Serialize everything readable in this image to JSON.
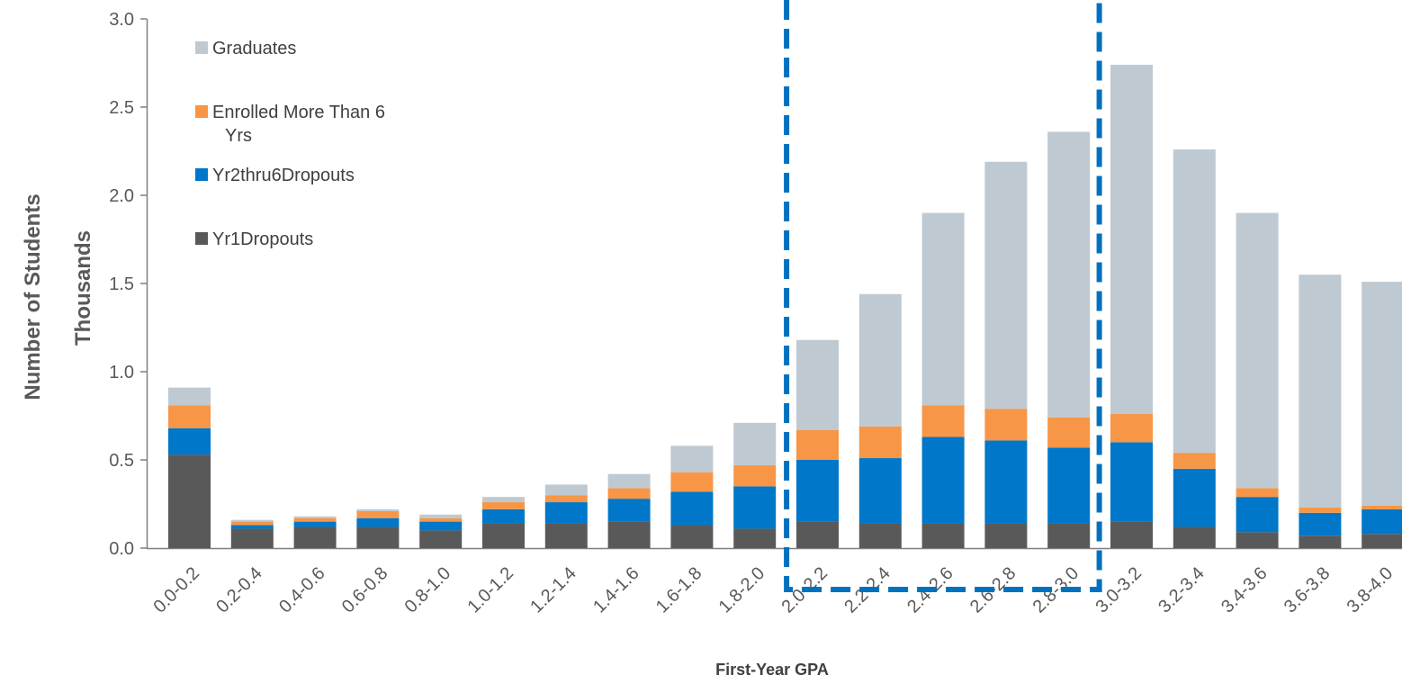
{
  "chart_data": {
    "type": "bar",
    "stacked": true,
    "categories": [
      "0.0-0.2",
      "0.2-0.4",
      "0.4-0.6",
      "0.6-0.8",
      "0.8-1.0",
      "1.0-1.2",
      "1.2-1.4",
      "1.4-1.6",
      "1.6-1.8",
      "1.8-2.0",
      "2.0-2.2",
      "2.2-2.4",
      "2.4-2.6",
      "2.6-2.8",
      "2.8-3.0",
      "3.0-3.2",
      "3.2-3.4",
      "3.4-3.6",
      "3.6-3.8",
      "3.8-4.0"
    ],
    "series": [
      {
        "name": "Yr1Dropouts",
        "color": "#595959",
        "values": [
          0.53,
          0.11,
          0.12,
          0.12,
          0.1,
          0.14,
          0.14,
          0.15,
          0.13,
          0.11,
          0.15,
          0.14,
          0.14,
          0.14,
          0.14,
          0.15,
          0.12,
          0.09,
          0.07,
          0.08
        ]
      },
      {
        "name": "Yr2thru6Dropouts",
        "color": "#0077C8",
        "values": [
          0.15,
          0.02,
          0.03,
          0.05,
          0.05,
          0.08,
          0.12,
          0.13,
          0.19,
          0.24,
          0.35,
          0.37,
          0.49,
          0.47,
          0.43,
          0.45,
          0.33,
          0.2,
          0.13,
          0.14
        ]
      },
      {
        "name": "Enrolled More Than 6 Yrs",
        "color": "#F79646",
        "values": [
          0.13,
          0.02,
          0.02,
          0.04,
          0.02,
          0.04,
          0.04,
          0.06,
          0.11,
          0.12,
          0.17,
          0.18,
          0.18,
          0.18,
          0.17,
          0.16,
          0.09,
          0.05,
          0.03,
          0.02
        ]
      },
      {
        "name": "Graduates",
        "color": "#BFC9D1",
        "values": [
          0.1,
          0.01,
          0.01,
          0.01,
          0.02,
          0.03,
          0.06,
          0.08,
          0.15,
          0.24,
          0.51,
          0.75,
          1.09,
          1.4,
          1.62,
          1.98,
          1.72,
          1.56,
          1.32,
          1.27
        ]
      }
    ],
    "legend": {
      "entries": [
        {
          "label": "Graduates",
          "color": "#BFC9D1"
        },
        {
          "label": "Enrolled More Than 6 Yrs",
          "color": "#F79646"
        },
        {
          "label": "Yr2thru6Dropouts",
          "color": "#0077C8"
        },
        {
          "label": "Yr1Dropouts",
          "color": "#595959"
        }
      ],
      "placement": "top-left"
    },
    "xlabel": "First-Year GPA",
    "ylabel": "Number of Students",
    "ylabel_secondary": "Thousands",
    "ylim": [
      0,
      3.0
    ],
    "yticks": [
      "0.0",
      "0.5",
      "1.0",
      "1.5",
      "2.0",
      "2.5",
      "3.0"
    ],
    "ytick_values": [
      0,
      0.5,
      1.0,
      1.5,
      2.0,
      2.5,
      3.0
    ],
    "highlight": {
      "from_category": "2.0-2.2",
      "to_category": "2.8-3.0",
      "color": "#0070C0",
      "style": "dashed"
    },
    "grid": false
  }
}
